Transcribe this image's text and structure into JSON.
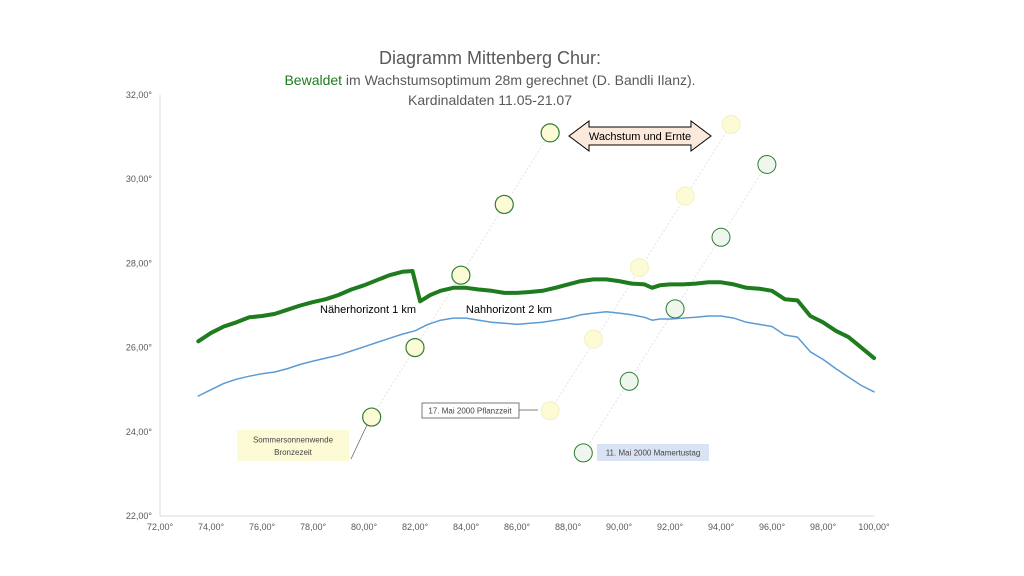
{
  "title": {
    "line1": "Diagramm Mittenberg Chur:",
    "line2_green": "Bewaldet",
    "line2_rest": " im Wachstumsoptimum 28m gerechnet (D. Bandli Ilanz).",
    "line3": "Kardinaldaten 11.05-21.07"
  },
  "colors": {
    "green": "#1e7b1e",
    "blue": "#5b9bd5",
    "yellow_fill": "#fdfbd6",
    "light_fill": "#eef6ee",
    "circle_stroke": "#2e7d32",
    "arrow_fill": "#fbe9dc",
    "label_blue_bg": "#dae3f3",
    "label_yellow_bg": "#fdfbd6"
  },
  "annotations": {
    "naeherhorizont": "Näherhorizont 1 km",
    "nahhorizont": "Nahhorizont 2 km",
    "wachstum": "Wachstum und Ernte",
    "pflanzzeit": "17. Mai 2000 Pflanzzeit",
    "mamertus": "11. Mai 2000 Mamertustag",
    "sommer_line1": "Sommersonnenwende",
    "sommer_line2": "Bronzezeit"
  },
  "chart_data": {
    "type": "line",
    "xlim": [
      72,
      100
    ],
    "ylim": [
      22,
      32
    ],
    "x_ticks": [
      "72,00°",
      "74,00°",
      "76,00°",
      "78,00°",
      "80,00°",
      "82,00°",
      "84,00°",
      "86,00°",
      "88,00°",
      "90,00°",
      "92,00°",
      "94,00°",
      "96,00°",
      "98,00°",
      "100,00°"
    ],
    "y_ticks": [
      "22,00°",
      "24,00°",
      "26,00°",
      "28,00°",
      "30,00°",
      "32,00°"
    ],
    "grid": false,
    "series": [
      {
        "name": "Näherhorizont 1 km",
        "color": "#1e7b1e",
        "width": 4,
        "points": [
          [
            73.5,
            26.15
          ],
          [
            74,
            26.35
          ],
          [
            74.5,
            26.5
          ],
          [
            75,
            26.6
          ],
          [
            75.5,
            26.72
          ],
          [
            76,
            26.75
          ],
          [
            76.5,
            26.8
          ],
          [
            77,
            26.9
          ],
          [
            77.5,
            27.0
          ],
          [
            78,
            27.08
          ],
          [
            78.5,
            27.15
          ],
          [
            79,
            27.25
          ],
          [
            79.5,
            27.38
          ],
          [
            80,
            27.48
          ],
          [
            80.5,
            27.6
          ],
          [
            81,
            27.72
          ],
          [
            81.5,
            27.8
          ],
          [
            81.9,
            27.82
          ],
          [
            82.2,
            27.1
          ],
          [
            82.6,
            27.25
          ],
          [
            83,
            27.35
          ],
          [
            83.5,
            27.42
          ],
          [
            84,
            27.42
          ],
          [
            84.5,
            27.38
          ],
          [
            85,
            27.35
          ],
          [
            85.5,
            27.3
          ],
          [
            86,
            27.3
          ],
          [
            86.5,
            27.32
          ],
          [
            87,
            27.35
          ],
          [
            87.5,
            27.42
          ],
          [
            88,
            27.5
          ],
          [
            88.5,
            27.58
          ],
          [
            89,
            27.62
          ],
          [
            89.5,
            27.62
          ],
          [
            90,
            27.58
          ],
          [
            90.5,
            27.52
          ],
          [
            91,
            27.5
          ],
          [
            91.3,
            27.42
          ],
          [
            91.6,
            27.48
          ],
          [
            92,
            27.5
          ],
          [
            92.5,
            27.5
          ],
          [
            93,
            27.52
          ],
          [
            93.5,
            27.55
          ],
          [
            94,
            27.55
          ],
          [
            94.5,
            27.5
          ],
          [
            95,
            27.42
          ],
          [
            95.5,
            27.4
          ],
          [
            96,
            27.35
          ],
          [
            96.5,
            27.15
          ],
          [
            97,
            27.12
          ],
          [
            97.5,
            26.75
          ],
          [
            98,
            26.6
          ],
          [
            98.5,
            26.4
          ],
          [
            99,
            26.25
          ],
          [
            99.5,
            26.0
          ],
          [
            100,
            25.75
          ]
        ]
      },
      {
        "name": "Nahhorizont 2 km",
        "color": "#5b9bd5",
        "width": 1.5,
        "points": [
          [
            73.5,
            24.85
          ],
          [
            74,
            25.0
          ],
          [
            74.5,
            25.15
          ],
          [
            75,
            25.25
          ],
          [
            75.5,
            25.32
          ],
          [
            76,
            25.38
          ],
          [
            76.5,
            25.42
          ],
          [
            77,
            25.5
          ],
          [
            77.5,
            25.6
          ],
          [
            78,
            25.68
          ],
          [
            78.5,
            25.75
          ],
          [
            79,
            25.82
          ],
          [
            79.5,
            25.92
          ],
          [
            80,
            26.02
          ],
          [
            80.5,
            26.12
          ],
          [
            81,
            26.22
          ],
          [
            81.5,
            26.32
          ],
          [
            82,
            26.4
          ],
          [
            82.5,
            26.55
          ],
          [
            83,
            26.65
          ],
          [
            83.5,
            26.7
          ],
          [
            84,
            26.7
          ],
          [
            84.5,
            26.65
          ],
          [
            85,
            26.6
          ],
          [
            85.5,
            26.58
          ],
          [
            86,
            26.55
          ],
          [
            86.5,
            26.58
          ],
          [
            87,
            26.6
          ],
          [
            87.5,
            26.65
          ],
          [
            88,
            26.7
          ],
          [
            88.5,
            26.78
          ],
          [
            89,
            26.82
          ],
          [
            89.5,
            26.85
          ],
          [
            90,
            26.82
          ],
          [
            90.5,
            26.78
          ],
          [
            91,
            26.72
          ],
          [
            91.3,
            26.65
          ],
          [
            91.6,
            26.68
          ],
          [
            92,
            26.68
          ],
          [
            92.5,
            26.7
          ],
          [
            93,
            26.72
          ],
          [
            93.5,
            26.75
          ],
          [
            94,
            26.75
          ],
          [
            94.5,
            26.7
          ],
          [
            95,
            26.6
          ],
          [
            95.5,
            26.55
          ],
          [
            96,
            26.5
          ],
          [
            96.5,
            26.3
          ],
          [
            97,
            26.25
          ],
          [
            97.5,
            25.9
          ],
          [
            98,
            25.72
          ],
          [
            98.5,
            25.5
          ],
          [
            99,
            25.3
          ],
          [
            99.5,
            25.1
          ],
          [
            100,
            24.95
          ]
        ]
      }
    ],
    "sun_points": [
      {
        "x": 80.3,
        "y": 24.35,
        "fill": "yellow"
      },
      {
        "x": 82.0,
        "y": 26.0,
        "fill": "yellow"
      },
      {
        "x": 83.8,
        "y": 27.72,
        "fill": "yellow"
      },
      {
        "x": 85.5,
        "y": 29.4,
        "fill": "yellow"
      },
      {
        "x": 87.3,
        "y": 31.1,
        "fill": "yellow"
      },
      {
        "x": 87.3,
        "y": 24.5,
        "fill": "pale"
      },
      {
        "x": 89.0,
        "y": 26.2,
        "fill": "pale"
      },
      {
        "x": 90.8,
        "y": 27.9,
        "fill": "pale"
      },
      {
        "x": 92.6,
        "y": 29.6,
        "fill": "pale"
      },
      {
        "x": 94.4,
        "y": 31.3,
        "fill": "pale"
      },
      {
        "x": 88.6,
        "y": 23.5,
        "fill": "light"
      },
      {
        "x": 90.4,
        "y": 25.2,
        "fill": "light"
      },
      {
        "x": 92.2,
        "y": 26.92,
        "fill": "light"
      },
      {
        "x": 94.0,
        "y": 28.62,
        "fill": "light"
      },
      {
        "x": 95.8,
        "y": 30.35,
        "fill": "light"
      }
    ]
  }
}
